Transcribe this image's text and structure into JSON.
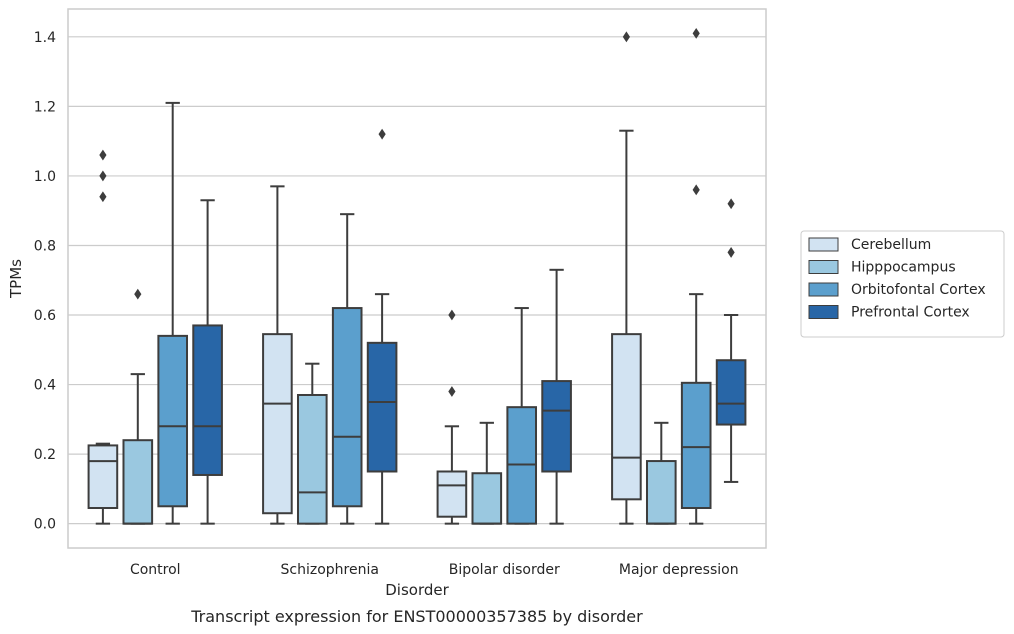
{
  "chart_data": {
    "type": "box",
    "xlabel": "Disorder",
    "ylabel": "TPMs",
    "caption": "Transcript expression for ENST00000357385 by disorder",
    "ylim": [
      -0.07,
      1.48
    ],
    "yticks": [
      "0.0",
      "0.2",
      "0.4",
      "0.6",
      "0.8",
      "1.0",
      "1.2",
      "1.4"
    ],
    "grid": "horizontal",
    "legend_position": "right",
    "categories": [
      "Control",
      "Schizophrenia",
      "Bipolar disorder",
      "Major depression"
    ],
    "series": [
      {
        "name": "Cerebellum",
        "color": "#d2e3f2",
        "boxes": [
          {
            "whislo": 0.0,
            "q1": 0.045,
            "med": 0.18,
            "q3": 0.225,
            "whishi": 0.23,
            "fliers": [
              0.94,
              1.0,
              1.06
            ]
          },
          {
            "whislo": 0.0,
            "q1": 0.03,
            "med": 0.345,
            "q3": 0.545,
            "whishi": 0.97,
            "fliers": []
          },
          {
            "whislo": 0.0,
            "q1": 0.02,
            "med": 0.11,
            "q3": 0.15,
            "whishi": 0.28,
            "fliers": [
              0.38,
              0.6
            ]
          },
          {
            "whislo": 0.0,
            "q1": 0.07,
            "med": 0.19,
            "q3": 0.545,
            "whishi": 1.13,
            "fliers": [
              1.4
            ]
          }
        ]
      },
      {
        "name": "Hipppocampus",
        "color": "#9ac8e0",
        "boxes": [
          {
            "whislo": 0.0,
            "q1": 0.0,
            "med": 0.0,
            "q3": 0.24,
            "whishi": 0.43,
            "fliers": [
              0.66
            ]
          },
          {
            "whislo": 0.0,
            "q1": 0.0,
            "med": 0.09,
            "q3": 0.37,
            "whishi": 0.46,
            "fliers": []
          },
          {
            "whislo": 0.0,
            "q1": 0.0,
            "med": 0.0,
            "q3": 0.145,
            "whishi": 0.29,
            "fliers": []
          },
          {
            "whislo": 0.0,
            "q1": 0.0,
            "med": 0.0,
            "q3": 0.18,
            "whishi": 0.29,
            "fliers": []
          }
        ]
      },
      {
        "name": "Orbitofontal Cortex",
        "color": "#5b9fcd",
        "boxes": [
          {
            "whislo": 0.0,
            "q1": 0.05,
            "med": 0.28,
            "q3": 0.54,
            "whishi": 1.21,
            "fliers": []
          },
          {
            "whislo": 0.0,
            "q1": 0.05,
            "med": 0.25,
            "q3": 0.62,
            "whishi": 0.89,
            "fliers": []
          },
          {
            "whislo": 0.0,
            "q1": 0.0,
            "med": 0.17,
            "q3": 0.335,
            "whishi": 0.62,
            "fliers": []
          },
          {
            "whislo": 0.0,
            "q1": 0.045,
            "med": 0.22,
            "q3": 0.405,
            "whishi": 0.66,
            "fliers": [
              0.96,
              1.41
            ]
          }
        ]
      },
      {
        "name": "Prefrontal Cortex",
        "color": "#2866a7",
        "boxes": [
          {
            "whislo": 0.0,
            "q1": 0.14,
            "med": 0.28,
            "q3": 0.57,
            "whishi": 0.93,
            "fliers": []
          },
          {
            "whislo": 0.0,
            "q1": 0.15,
            "med": 0.35,
            "q3": 0.52,
            "whishi": 0.66,
            "fliers": [
              1.12
            ]
          },
          {
            "whislo": 0.0,
            "q1": 0.15,
            "med": 0.325,
            "q3": 0.41,
            "whishi": 0.73,
            "fliers": []
          },
          {
            "whislo": 0.12,
            "q1": 0.285,
            "med": 0.345,
            "q3": 0.47,
            "whishi": 0.6,
            "fliers": [
              0.78,
              0.92
            ]
          }
        ]
      }
    ]
  }
}
